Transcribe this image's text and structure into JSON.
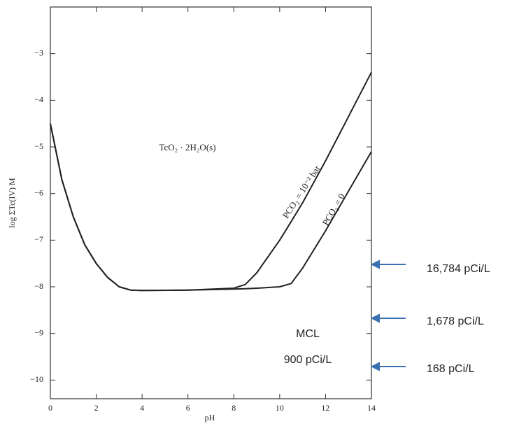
{
  "chart_data": {
    "type": "line",
    "xlabel": "pH",
    "ylabel": "log ΣTc(IV) M",
    "x": [
      0,
      0.5,
      1,
      1.5,
      2,
      2.5,
      3,
      3.5,
      4,
      6,
      8,
      8.5,
      9,
      10,
      10.5,
      11,
      12,
      13,
      14
    ],
    "series": [
      {
        "name": "PCO₂ = 10⁻² bar",
        "color": "#222222",
        "values": [
          -4.5,
          -5.7,
          -6.5,
          -7.1,
          -7.5,
          -7.8,
          -8.0,
          -8.07,
          -8.08,
          -8.07,
          -8.03,
          -7.95,
          -7.7,
          -7.0,
          -6.6,
          -6.2,
          -5.3,
          -4.35,
          -3.4
        ]
      },
      {
        "name": "PCO₂ = 0",
        "color": "#222222",
        "values": [
          -4.5,
          -5.7,
          -6.5,
          -7.1,
          -7.5,
          -7.8,
          -8.0,
          -8.07,
          -8.08,
          -8.07,
          -8.05,
          -8.04,
          -8.03,
          -8.0,
          -7.93,
          -7.6,
          -6.8,
          -5.95,
          -5.1
        ]
      }
    ],
    "xlim": [
      0,
      14
    ],
    "ylim": [
      -10.4,
      -2
    ],
    "xticks": [
      0,
      2,
      4,
      6,
      8,
      10,
      12,
      14
    ],
    "yticks": [
      {
        "value": -3,
        "label": "−3"
      },
      {
        "value": -4,
        "label": "−4"
      },
      {
        "value": -5,
        "label": "−5"
      },
      {
        "value": -6,
        "label": "−6"
      },
      {
        "value": -7,
        "label": "−7"
      },
      {
        "value": -8,
        "label": "−8"
      },
      {
        "value": -9,
        "label": "−9"
      },
      {
        "value": -10,
        "label": "−10"
      }
    ],
    "annotations": [
      "TcO₂ · 2H₂O(s)",
      "MCL",
      "900 pCi/L",
      "16,784 pCi/L",
      "1,678 pCi/L",
      "168 pCi/L"
    ]
  }
}
